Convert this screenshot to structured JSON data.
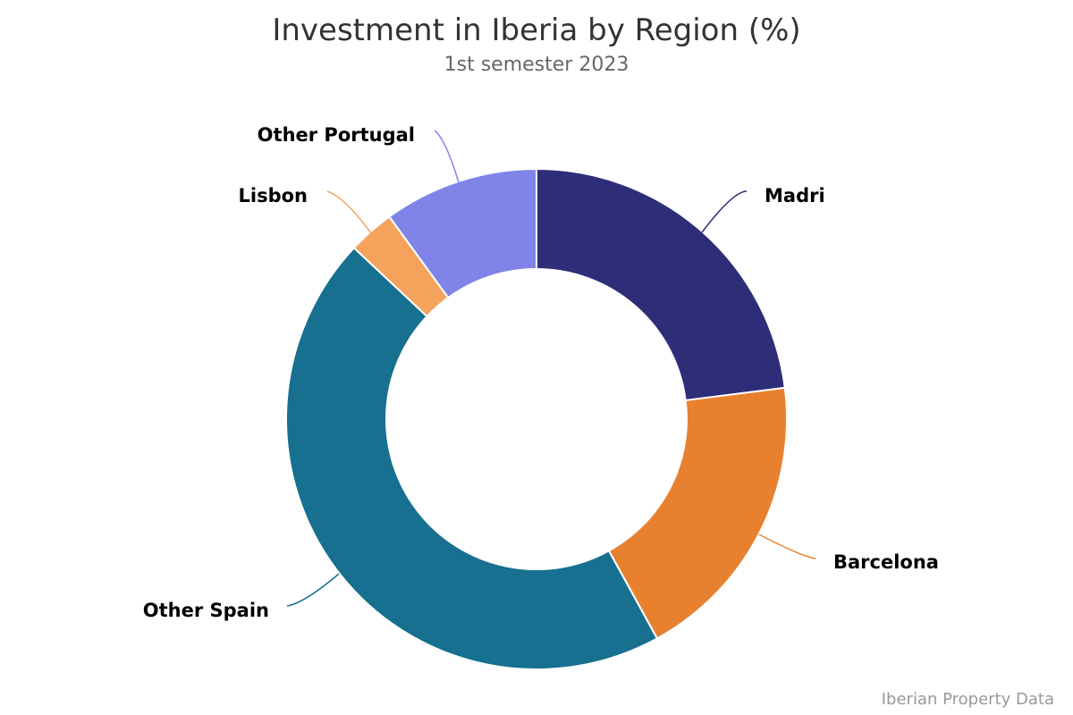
{
  "header": {
    "title": "Investment in Iberia by Region (%)",
    "subtitle": "1st semester 2023"
  },
  "credit": "Iberian Property Data",
  "chart_data": {
    "type": "pie",
    "variant": "donut",
    "title": "Investment in Iberia by Region (%)",
    "subtitle": "1st semester 2023",
    "categories": [
      "Madri",
      "Barcelona",
      "Other Spain",
      "Lisbon",
      "Other Portugal"
    ],
    "values": [
      23,
      19,
      45,
      3,
      10
    ],
    "colors": [
      "#2d2d78",
      "#e8812f",
      "#17708f",
      "#f5a35c",
      "#8084e8"
    ],
    "start_angle_deg": 0,
    "direction": "clockwise",
    "legend": "none (data labels with connector lines)",
    "credit": "Iberian Property Data"
  }
}
